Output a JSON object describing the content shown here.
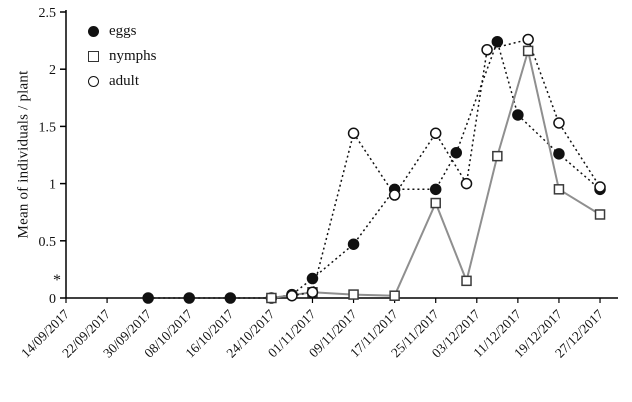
{
  "chart_data": {
    "type": "line",
    "title": "",
    "xlabel": "",
    "ylabel": "Mean of individuals / plant",
    "ylim": [
      0,
      2.5
    ],
    "y_ticks": [
      0,
      0.5,
      1,
      1.5,
      2,
      2.5
    ],
    "y_tick_labels": [
      "0",
      "0.5",
      "1",
      "1.5",
      "2",
      "2.5"
    ],
    "xlim": [
      0,
      107.5
    ],
    "x_tick_days": [
      0,
      8,
      16,
      24,
      32,
      40,
      48,
      56,
      64,
      72,
      80,
      88,
      96,
      104
    ],
    "x_tick_labels": [
      "14/09/2017",
      "22/09/2017",
      "30/09/2017",
      "08/10/2017",
      "16/10/2017",
      "24/10/2017",
      "01/11/2017",
      "09/11/2017",
      "17/11/2017",
      "25/11/2017",
      "03/12/2017",
      "11/12/2017",
      "19/12/2017",
      "27/12/2017"
    ],
    "grid": false,
    "legend_position": "top-left-inside",
    "series": [
      {
        "name": "eggs",
        "marker": "filled-circle",
        "line": "dotted",
        "color": "#111111",
        "marker_color": "#111111",
        "x": [
          16,
          24,
          32,
          40,
          44,
          48,
          56,
          64,
          72,
          76,
          84,
          88,
          96,
          104
        ],
        "y": [
          0,
          0,
          0,
          0,
          0.03,
          0.17,
          0.47,
          0.95,
          0.95,
          1.27,
          2.24,
          1.6,
          1.26,
          0.95
        ]
      },
      {
        "name": "nymphs",
        "marker": "open-square",
        "line": "solid",
        "color": "#8f8f8f",
        "marker_color": "#3a3a3a",
        "x": [
          40,
          48,
          56,
          64,
          72,
          78,
          84,
          90,
          96,
          104
        ],
        "y": [
          0,
          0.05,
          0.03,
          0.02,
          0.83,
          0.15,
          1.24,
          2.16,
          0.95,
          0.73
        ]
      },
      {
        "name": "adult",
        "marker": "open-circle",
        "line": "dotted",
        "color": "#111111",
        "marker_color": "#111111",
        "x": [
          44,
          48,
          56,
          64,
          72,
          78,
          82,
          90,
          96,
          104
        ],
        "y": [
          0.02,
          0.05,
          1.44,
          0.9,
          1.44,
          1.0,
          2.17,
          2.26,
          1.53,
          0.97
        ]
      }
    ],
    "annotations": [
      {
        "text": "*"
      }
    ]
  }
}
